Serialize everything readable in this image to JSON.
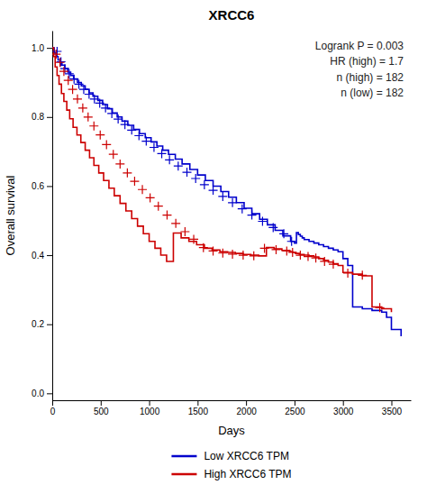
{
  "chart_data": {
    "type": "line",
    "title": "XRCC6",
    "xlabel": "Days",
    "ylabel": "Overall survival",
    "xlim": [
      0,
      3700
    ],
    "ylim": [
      -0.02,
      1.05
    ],
    "xticks": [
      0,
      500,
      1000,
      1500,
      2000,
      2500,
      3000,
      3500
    ],
    "yticks": [
      {
        "value": 0.0,
        "label": "0.0"
      },
      0.2,
      0.4,
      0.6,
      0.8,
      {
        "value": 1.0,
        "label": "1.0"
      }
    ],
    "annotation": "Logrank P = 0.003\nHR (high) = 1.7\n\nn (high) = 182\nn (low) = 182",
    "grid": false,
    "legend": "below",
    "series": [
      {
        "name": "Low XRCC6 TPM",
        "color": "#0000cc",
        "type": "step",
        "x": [
          0,
          20,
          40,
          60,
          80,
          100,
          130,
          160,
          190,
          220,
          260,
          300,
          340,
          380,
          420,
          470,
          520,
          570,
          620,
          670,
          720,
          780,
          840,
          900,
          960,
          1020,
          1080,
          1140,
          1200,
          1270,
          1340,
          1420,
          1500,
          1580,
          1660,
          1740,
          1820,
          1900,
          1980,
          2060,
          2140,
          2220,
          2300,
          2380,
          2460,
          2500,
          2520,
          2540,
          2560,
          2580,
          2600,
          2650,
          2700,
          2750,
          2800,
          2850,
          2900,
          2950,
          3000,
          3050,
          3100,
          3200,
          3300,
          3400,
          3450,
          3500,
          3600
        ],
        "values": [
          1.0,
          0.985,
          0.975,
          0.965,
          0.958,
          0.95,
          0.94,
          0.93,
          0.92,
          0.91,
          0.9,
          0.89,
          0.88,
          0.87,
          0.86,
          0.848,
          0.836,
          0.824,
          0.812,
          0.8,
          0.788,
          0.776,
          0.764,
          0.752,
          0.74,
          0.728,
          0.716,
          0.704,
          0.692,
          0.678,
          0.664,
          0.648,
          0.632,
          0.616,
          0.6,
          0.584,
          0.568,
          0.552,
          0.536,
          0.52,
          0.504,
          0.488,
          0.472,
          0.456,
          0.44,
          0.435,
          0.465,
          0.46,
          0.455,
          0.45,
          0.445,
          0.44,
          0.435,
          0.43,
          0.425,
          0.42,
          0.415,
          0.41,
          0.39,
          0.37,
          0.25,
          0.245,
          0.24,
          0.235,
          0.22,
          0.185,
          0.165
        ]
      },
      {
        "name": "High XRCC6 TPM",
        "color": "#cc0000",
        "type": "step",
        "x": [
          0,
          15,
          30,
          50,
          70,
          95,
          120,
          150,
          180,
          215,
          255,
          295,
          340,
          385,
          430,
          480,
          530,
          585,
          640,
          700,
          760,
          820,
          880,
          940,
          1000,
          1060,
          1120,
          1180,
          1250,
          1330,
          1410,
          1490,
          1570,
          1650,
          1730,
          1810,
          1890,
          1970,
          2050,
          2130,
          2210,
          2290,
          2370,
          2450,
          2480,
          2510,
          2550,
          2600,
          2650,
          2700,
          2750,
          2800,
          2850,
          2900,
          2950,
          3000,
          3100,
          3200,
          3300,
          3400,
          3500
        ],
        "values": [
          1.0,
          0.975,
          0.945,
          0.92,
          0.895,
          0.868,
          0.845,
          0.82,
          0.795,
          0.77,
          0.748,
          0.726,
          0.704,
          0.682,
          0.66,
          0.638,
          0.616,
          0.594,
          0.572,
          0.55,
          0.528,
          0.506,
          0.484,
          0.462,
          0.44,
          0.42,
          0.4,
          0.382,
          0.464,
          0.45,
          0.44,
          0.43,
          0.42,
          0.415,
          0.41,
          0.408,
          0.405,
          0.402,
          0.4,
          0.398,
          0.422,
          0.418,
          0.414,
          0.41,
          0.408,
          0.405,
          0.402,
          0.4,
          0.398,
          0.395,
          0.39,
          0.385,
          0.38,
          0.375,
          0.37,
          0.35,
          0.345,
          0.34,
          0.25,
          0.245,
          0.235
        ]
      },
      {
        "color": "#0000cc",
        "type": "scatter",
        "marker": "plus",
        "x": [
          50,
          90,
          130,
          175,
          225,
          275,
          325,
          380,
          435,
          490,
          550,
          615,
          680,
          750,
          820,
          895,
          970,
          1050,
          1130,
          1210,
          1300,
          1390,
          1480,
          1570,
          1660,
          1760,
          1860,
          1960,
          2060,
          2170,
          2280,
          2390,
          2470
        ],
        "values": [
          0.99,
          0.96,
          0.94,
          0.925,
          0.91,
          0.895,
          0.88,
          0.866,
          0.852,
          0.84,
          0.826,
          0.81,
          0.794,
          0.778,
          0.762,
          0.746,
          0.73,
          0.712,
          0.694,
          0.676,
          0.658,
          0.64,
          0.622,
          0.604,
          0.588,
          0.57,
          0.552,
          0.534,
          0.516,
          0.498,
          0.48,
          0.462,
          0.44
        ]
      },
      {
        "color": "#cc0000",
        "type": "scatter",
        "marker": "plus",
        "x": [
          40,
          80,
          120,
          165,
          210,
          260,
          315,
          370,
          430,
          495,
          560,
          630,
          700,
          775,
          850,
          930,
          1010,
          1095,
          1185,
          1275,
          1370,
          1460,
          1560,
          1660,
          1760,
          1860,
          1970,
          2080,
          2190,
          2310,
          2420,
          2480,
          2560,
          2640,
          2720,
          2810,
          2900,
          3050,
          3200,
          3380
        ],
        "values": [
          0.982,
          0.958,
          0.932,
          0.906,
          0.88,
          0.852,
          0.826,
          0.8,
          0.774,
          0.748,
          0.72,
          0.692,
          0.664,
          0.638,
          0.614,
          0.59,
          0.566,
          0.542,
          0.516,
          0.492,
          0.468,
          0.446,
          0.422,
          0.412,
          0.406,
          0.403,
          0.4,
          0.398,
          0.42,
          0.416,
          0.412,
          0.408,
          0.4,
          0.396,
          0.392,
          0.382,
          0.374,
          0.348,
          0.342,
          0.248
        ]
      }
    ]
  }
}
